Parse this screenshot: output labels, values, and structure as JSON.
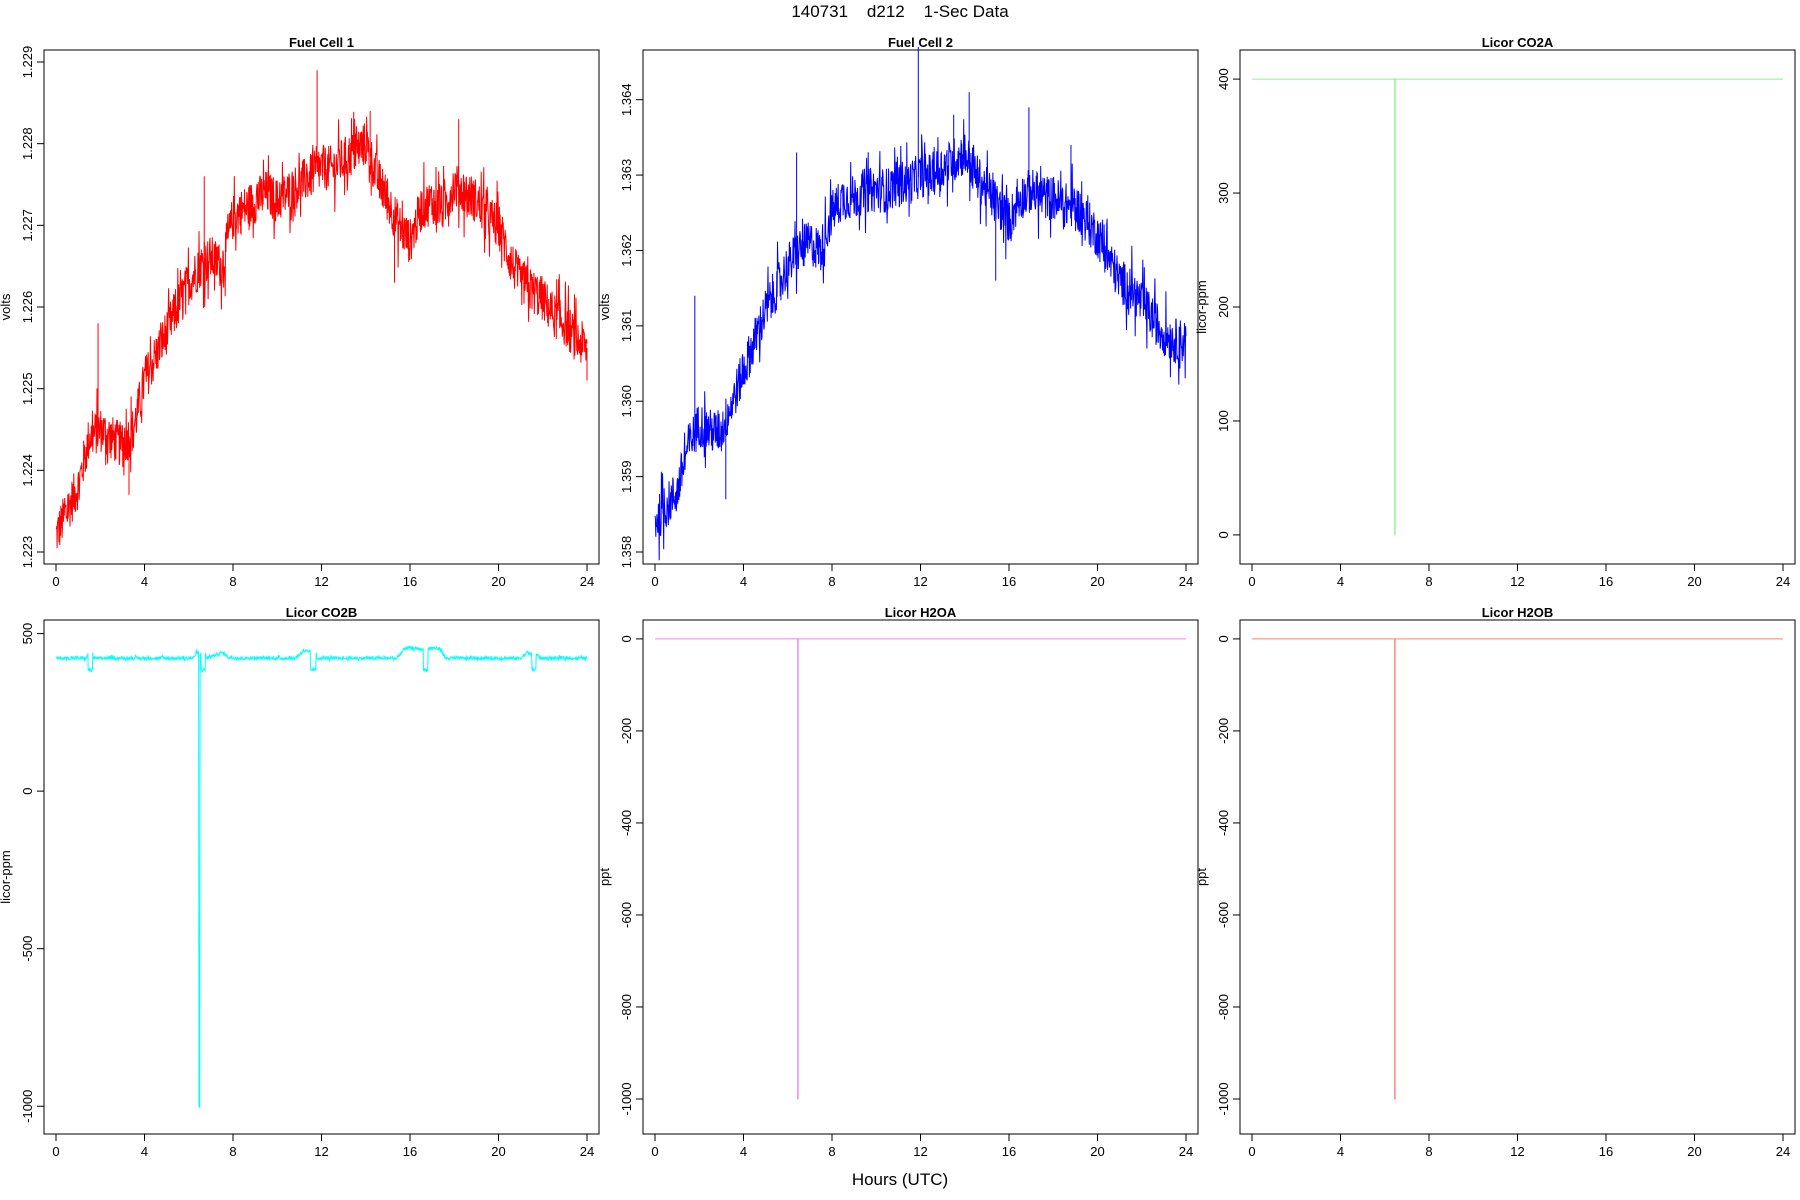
{
  "title": "140731    d212    1-Sec Data",
  "xlabel": "Hours (UTC)",
  "chart_data": [
    {
      "type": "line",
      "title": "Fuel Cell 1",
      "ylabel": "volts",
      "color": "#ff0000",
      "xlim": [
        0,
        24
      ],
      "ylim": [
        1.223,
        1.229
      ],
      "xticks": [
        0,
        4,
        8,
        12,
        16,
        20,
        24
      ],
      "yticks": [
        1.223,
        1.224,
        1.225,
        1.226,
        1.227,
        1.228,
        1.229
      ],
      "ytick_labels": [
        "1.223",
        "1.224",
        "1.225",
        "1.226",
        "1.227",
        "1.228",
        "1.229"
      ],
      "x": [
        0,
        0.5,
        1,
        1.5,
        2,
        2.5,
        3,
        3.5,
        4,
        4.5,
        5,
        5.5,
        6,
        6.5,
        7,
        7.5,
        8,
        8.5,
        9,
        9.5,
        10,
        10.5,
        11,
        11.5,
        12,
        12.5,
        13,
        13.5,
        14,
        14.5,
        15,
        15.5,
        16,
        16.5,
        17,
        17.5,
        18,
        18.5,
        19,
        19.5,
        20,
        20.5,
        21,
        21.5,
        22,
        22.5,
        23,
        23.5,
        24
      ],
      "y": [
        1.2232,
        1.2235,
        1.2238,
        1.2244,
        1.2245,
        1.2244,
        1.2243,
        1.2245,
        1.2251,
        1.2254,
        1.2257,
        1.226,
        1.2263,
        1.2265,
        1.2266,
        1.2265,
        1.2271,
        1.2272,
        1.2273,
        1.2274,
        1.2273,
        1.2274,
        1.2275,
        1.2276,
        1.2277,
        1.2277,
        1.2278,
        1.2279,
        1.228,
        1.2276,
        1.2273,
        1.227,
        1.2268,
        1.2272,
        1.2273,
        1.2272,
        1.2275,
        1.2274,
        1.2273,
        1.2271,
        1.227,
        1.2266,
        1.2263,
        1.2262,
        1.2261,
        1.2259,
        1.2258,
        1.2256,
        1.2255
      ],
      "noise": 0.00028,
      "spikes": [
        {
          "x": 1.9,
          "y": 1.2258
        },
        {
          "x": 3.3,
          "y": 1.2237
        },
        {
          "x": 6.7,
          "y": 1.2276
        },
        {
          "x": 11.8,
          "y": 1.2289
        },
        {
          "x": 13.5,
          "y": 1.2283
        },
        {
          "x": 14.2,
          "y": 1.2284
        },
        {
          "x": 15.3,
          "y": 1.2263
        },
        {
          "x": 18.2,
          "y": 1.2283
        },
        {
          "x": 24,
          "y": 1.2251
        }
      ]
    },
    {
      "type": "line",
      "title": "Fuel Cell 2",
      "ylabel": "volts",
      "color": "#0000ff",
      "xlim": [
        0,
        24
      ],
      "ylim": [
        1.358,
        1.3645
      ],
      "xticks": [
        0,
        4,
        8,
        12,
        16,
        20,
        24
      ],
      "yticks": [
        1.358,
        1.359,
        1.36,
        1.361,
        1.362,
        1.363,
        1.364
      ],
      "ytick_labels": [
        "1.358",
        "1.359",
        "1.360",
        "1.361",
        "1.362",
        "1.363",
        "1.364"
      ],
      "x": [
        0,
        0.5,
        1,
        1.5,
        2,
        2.5,
        3,
        3.5,
        4,
        4.5,
        5,
        5.5,
        6,
        6.5,
        7,
        7.5,
        8,
        8.5,
        9,
        9.5,
        10,
        10.5,
        11,
        11.5,
        12,
        12.5,
        13,
        13.5,
        14,
        14.5,
        15,
        15.5,
        16,
        16.5,
        17,
        17.5,
        18,
        18.5,
        19,
        19.5,
        20,
        20.5,
        21,
        21.5,
        22,
        22.5,
        23,
        23.5,
        24
      ],
      "y": [
        1.3584,
        1.3586,
        1.3588,
        1.3594,
        1.3597,
        1.3596,
        1.3596,
        1.36,
        1.3604,
        1.3608,
        1.3612,
        1.3615,
        1.3618,
        1.362,
        1.3621,
        1.362,
        1.3625,
        1.3627,
        1.3627,
        1.3628,
        1.3628,
        1.3628,
        1.3629,
        1.3629,
        1.363,
        1.363,
        1.3631,
        1.3632,
        1.3633,
        1.363,
        1.3628,
        1.3626,
        1.3624,
        1.3627,
        1.3628,
        1.3627,
        1.3627,
        1.3626,
        1.3626,
        1.3624,
        1.3622,
        1.3619,
        1.3616,
        1.3615,
        1.3613,
        1.3611,
        1.3609,
        1.3608,
        1.3608
      ],
      "noise": 0.0003,
      "spikes": [
        {
          "x": 1.8,
          "y": 1.3614
        },
        {
          "x": 3.2,
          "y": 1.3587
        },
        {
          "x": 6.4,
          "y": 1.3633
        },
        {
          "x": 11.9,
          "y": 1.3647
        },
        {
          "x": 13.5,
          "y": 1.3638
        },
        {
          "x": 14.2,
          "y": 1.3641
        },
        {
          "x": 15.4,
          "y": 1.3616
        },
        {
          "x": 16.9,
          "y": 1.3639
        },
        {
          "x": 18.8,
          "y": 1.3634
        }
      ]
    },
    {
      "type": "line",
      "title": "Licor CO2A",
      "ylabel": "licor-ppm",
      "color": "#90ee90",
      "xlim": [
        0,
        24
      ],
      "ylim": [
        -15,
        415
      ],
      "xticks": [
        0,
        4,
        8,
        12,
        16,
        20,
        24
      ],
      "yticks": [
        0,
        100,
        200,
        300,
        400
      ],
      "ytick_labels": [
        "0",
        "100",
        "200",
        "300",
        "400"
      ],
      "x": [
        0,
        6.45,
        6.45,
        6.47,
        6.47,
        24
      ],
      "y": [
        400,
        400,
        0,
        0,
        400,
        400
      ],
      "noise": 0,
      "spikes": []
    },
    {
      "type": "line",
      "title": "Licor CO2B",
      "ylabel": "licor-ppm",
      "color": "#00ffff",
      "xlim": [
        0,
        24
      ],
      "ylim": [
        -1050,
        505
      ],
      "xticks": [
        0,
        4,
        8,
        12,
        16,
        20,
        24
      ],
      "yticks": [
        -1000,
        -500,
        0,
        500
      ],
      "ytick_labels": [
        "-1000",
        "-500",
        "0",
        "500"
      ],
      "x": [
        0,
        1.4,
        1.45,
        1.45,
        1.65,
        1.65,
        1.7,
        6.2,
        6.35,
        6.45,
        6.45,
        6.5,
        6.5,
        6.55,
        6.55,
        6.75,
        6.75,
        6.8,
        7.5,
        7.8,
        8.2,
        10.8,
        11.2,
        11.5,
        11.5,
        11.75,
        11.75,
        11.8,
        12.2,
        15.4,
        15.8,
        16.6,
        16.6,
        16.8,
        16.8,
        17,
        17.4,
        17.6,
        21,
        21.3,
        21.5,
        21.5,
        21.7,
        21.7,
        21.9,
        24
      ],
      "y": [
        422,
        422,
        440,
        385,
        385,
        440,
        422,
        422,
        440,
        435,
        -1000,
        -1000,
        435,
        435,
        385,
        385,
        440,
        422,
        440,
        425,
        422,
        422,
        445,
        440,
        385,
        385,
        440,
        422,
        422,
        422,
        455,
        450,
        385,
        385,
        450,
        455,
        450,
        422,
        422,
        440,
        435,
        385,
        385,
        435,
        422,
        422
      ],
      "noise": 5,
      "spikes": []
    },
    {
      "type": "line",
      "title": "Licor H2OA",
      "ylabel": "ppt",
      "color": "#ee82ee",
      "xlim": [
        0,
        24
      ],
      "ylim": [
        -1050,
        15
      ],
      "xticks": [
        0,
        4,
        8,
        12,
        16,
        20,
        24
      ],
      "yticks": [
        -1000,
        -800,
        -600,
        -400,
        -200,
        0
      ],
      "ytick_labels": [
        "-1000",
        "-800",
        "-600",
        "-400",
        "-200",
        "0"
      ],
      "x": [
        0,
        6.45,
        6.45,
        6.47,
        6.47,
        24
      ],
      "y": [
        0,
        0,
        -1000,
        -1000,
        0,
        0
      ],
      "noise": 0,
      "spikes": []
    },
    {
      "type": "line",
      "title": "Licor H2OB",
      "ylabel": "ppt",
      "color": "#fa8072",
      "xlim": [
        0,
        24
      ],
      "ylim": [
        -1050,
        15
      ],
      "xticks": [
        0,
        4,
        8,
        12,
        16,
        20,
        24
      ],
      "yticks": [
        -1000,
        -800,
        -600,
        -400,
        -200,
        0
      ],
      "ytick_labels": [
        "-1000",
        "-800",
        "-600",
        "-400",
        "-200",
        "0"
      ],
      "x": [
        0,
        6.45,
        6.45,
        6.47,
        6.47,
        24
      ],
      "y": [
        0,
        0,
        -1000,
        -1000,
        0,
        0
      ],
      "noise": 0,
      "spikes": []
    }
  ]
}
